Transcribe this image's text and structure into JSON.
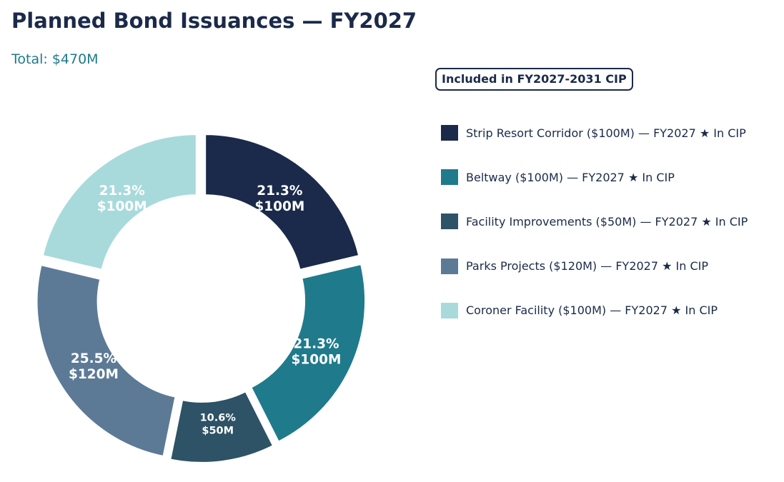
{
  "chart_data": {
    "type": "pie",
    "title": "Planned Bond Issuances — FY2027",
    "subtitle": "Total: $470M",
    "legend_title": "Included in FY2027-2031 CIP",
    "legend_position": "right",
    "slices": [
      {
        "name": "Strip Resort Corridor",
        "value": 100,
        "value_label": "$100M",
        "percent_label": "21.3%",
        "legend_label": "Strip Resort Corridor  ($100M) — FY2027  ★ In CIP",
        "color": "#1b2a4a"
      },
      {
        "name": "Beltway",
        "value": 100,
        "value_label": "$100M",
        "percent_label": "21.3%",
        "legend_label": "Beltway  ($100M) — FY2027  ★ In CIP",
        "color": "#1f7a8c"
      },
      {
        "name": "Facility Improvements",
        "value": 50,
        "value_label": "$50M",
        "percent_label": "10.6%",
        "legend_label": "Facility Improvements  ($50M) — FY2027  ★ In CIP",
        "color": "#2e5266"
      },
      {
        "name": "Parks Projects",
        "value": 120,
        "value_label": "$120M",
        "percent_label": "25.5%",
        "legend_label": "Parks Projects  ($120M) — FY2027  ★ In CIP",
        "color": "#5c7a96"
      },
      {
        "name": "Coroner Facility",
        "value": 100,
        "value_label": "$100M",
        "percent_label": "21.3%",
        "legend_label": "Coroner Facility  ($100M) — FY2027  ★ In CIP",
        "color": "#a8dadc"
      }
    ]
  }
}
